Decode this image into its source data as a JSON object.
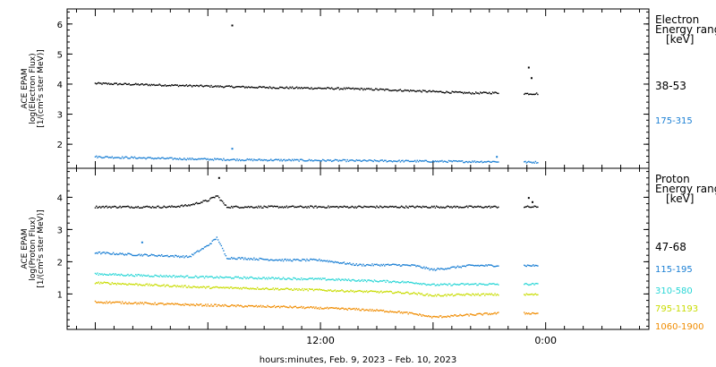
{
  "chart_data": [
    {
      "type": "scatter",
      "panel": "electron",
      "ylabel_lines": [
        "ACE EPAM",
        "log(Electron Flux)",
        "[1/(cm²s ster MeV)]"
      ],
      "ylim": [
        1.2,
        6.5
      ],
      "yticks": [
        "2",
        "3",
        "4",
        "5",
        "6"
      ],
      "legend_title": [
        "Electron",
        "Energy range",
        "[keV]"
      ],
      "grid": false,
      "series": [
        {
          "name": "38-53",
          "color": "#000000",
          "x": [
            0,
            2,
            4,
            6,
            8,
            10,
            12,
            14,
            16,
            18,
            20,
            21.5,
            22.5,
            23,
            23.5
          ],
          "values": [
            4.02,
            3.99,
            3.96,
            3.93,
            3.9,
            3.88,
            3.86,
            3.84,
            3.8,
            3.75,
            3.7,
            3.71,
            3.7,
            3.68,
            3.68
          ],
          "outliers": [
            {
              "x": 7.3,
              "y": 5.95
            },
            {
              "x": 23.1,
              "y": 4.55
            },
            {
              "x": 23.25,
              "y": 4.2
            }
          ]
        },
        {
          "name": "175-315",
          "color": "#1a7fd4",
          "x": [
            0,
            2,
            4,
            6,
            8,
            10,
            12,
            14,
            16,
            18,
            20,
            21.5,
            22.5,
            23,
            23.5
          ],
          "values": [
            1.58,
            1.55,
            1.52,
            1.5,
            1.48,
            1.47,
            1.46,
            1.45,
            1.44,
            1.43,
            1.42,
            1.42,
            1.43,
            1.4,
            1.4
          ],
          "outliers": [
            {
              "x": 7.3,
              "y": 1.85
            },
            {
              "x": 21.4,
              "y": 1.58
            }
          ]
        }
      ]
    },
    {
      "type": "scatter",
      "panel": "proton",
      "ylabel_lines": [
        "ACE EPAM",
        "log(Proton Flux)",
        "[1/(cm²s ster MeV)]"
      ],
      "ylim": [
        -0.1,
        4.9
      ],
      "yticks": [
        "1",
        "2",
        "3",
        "4"
      ],
      "legend_title": [
        "Proton",
        "Energy range",
        "[keV]"
      ],
      "grid": false,
      "series": [
        {
          "name": "47-68",
          "color": "#000000",
          "x": [
            0,
            2,
            4,
            5,
            6,
            6.5,
            7,
            8,
            10,
            12,
            14,
            16,
            18,
            20,
            21.5,
            22.5,
            23,
            23.5
          ],
          "values": [
            3.7,
            3.7,
            3.7,
            3.75,
            3.9,
            4.05,
            3.7,
            3.7,
            3.7,
            3.7,
            3.7,
            3.7,
            3.7,
            3.7,
            3.7,
            3.72,
            3.7,
            3.7
          ],
          "outliers": [
            {
              "x": 6.6,
              "y": 4.6
            },
            {
              "x": 23.1,
              "y": 3.98
            },
            {
              "x": 23.3,
              "y": 3.85
            }
          ]
        },
        {
          "name": "115-195",
          "color": "#1a7fd4",
          "x": [
            0,
            2,
            4,
            5,
            6,
            6.5,
            7,
            8,
            10,
            12,
            14,
            16,
            17,
            18,
            20,
            21.5,
            22.5,
            23,
            23.5
          ],
          "values": [
            2.28,
            2.22,
            2.18,
            2.15,
            2.5,
            2.75,
            2.12,
            2.1,
            2.05,
            2.05,
            1.9,
            1.9,
            1.88,
            1.75,
            1.88,
            1.88,
            1.88,
            1.88,
            1.88
          ],
          "outliers": [
            {
              "x": 2.5,
              "y": 2.6
            }
          ]
        },
        {
          "name": "310-580",
          "color": "#29d6d6",
          "x": [
            0,
            2,
            4,
            6,
            8,
            10,
            12,
            14,
            16,
            17,
            18,
            20,
            21.5,
            22.5,
            23,
            23.5
          ],
          "values": [
            1.62,
            1.58,
            1.55,
            1.52,
            1.5,
            1.48,
            1.46,
            1.42,
            1.38,
            1.35,
            1.28,
            1.3,
            1.3,
            1.3,
            1.3,
            1.3
          ],
          "outliers": []
        },
        {
          "name": "795-1193",
          "color": "#c8dc00",
          "x": [
            0,
            2,
            4,
            6,
            8,
            10,
            12,
            14,
            16,
            17,
            18,
            20,
            21.5,
            22.5,
            23,
            23.5
          ],
          "values": [
            1.35,
            1.3,
            1.25,
            1.2,
            1.18,
            1.15,
            1.12,
            1.08,
            1.05,
            1.02,
            0.95,
            0.98,
            0.98,
            0.98,
            0.98,
            0.98
          ],
          "outliers": []
        },
        {
          "name": "1060-1900",
          "color": "#f08c00",
          "x": [
            0,
            2,
            4,
            6,
            8,
            10,
            12,
            14,
            16,
            17,
            18,
            20,
            21.5,
            22.5,
            23,
            23.5
          ],
          "values": [
            0.75,
            0.72,
            0.68,
            0.65,
            0.62,
            0.6,
            0.56,
            0.52,
            0.45,
            0.38,
            0.28,
            0.35,
            0.4,
            0.4,
            0.4,
            0.4
          ],
          "outliers": []
        }
      ]
    }
  ],
  "x_axis": {
    "range": [
      -1.5,
      29.5
    ],
    "tick_labels": [
      {
        "x": 12,
        "label": "12:00"
      },
      {
        "x": 24,
        "label": "0:00"
      }
    ],
    "data_gap": [
      21.5,
      22.8
    ],
    "xlabel": "hours:minutes, Feb.  9, 2023 – Feb. 10, 2023"
  }
}
